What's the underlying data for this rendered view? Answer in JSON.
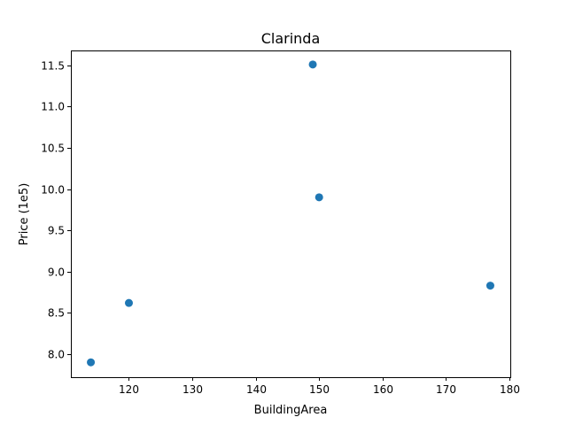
{
  "chart_data": {
    "type": "scatter",
    "title": "Clarinda",
    "xlabel": "BuildingArea",
    "ylabel": "Price (1e5)",
    "xlim": [
      110.85,
      180.15
    ],
    "ylim": [
      7.72,
      11.68
    ],
    "x_ticks": [
      {
        "value": 120,
        "label": "120"
      },
      {
        "value": 130,
        "label": "130"
      },
      {
        "value": 140,
        "label": "140"
      },
      {
        "value": 150,
        "label": "150"
      },
      {
        "value": 160,
        "label": "160"
      },
      {
        "value": 170,
        "label": "170"
      },
      {
        "value": 180,
        "label": "180"
      }
    ],
    "y_ticks": [
      {
        "value": 8.0,
        "label": "8.0"
      },
      {
        "value": 8.5,
        "label": "8.5"
      },
      {
        "value": 9.0,
        "label": "9.0"
      },
      {
        "value": 9.5,
        "label": "9.5"
      },
      {
        "value": 10.0,
        "label": "10.0"
      },
      {
        "value": 10.5,
        "label": "10.5"
      },
      {
        "value": 11.0,
        "label": "11.0"
      },
      {
        "value": 11.5,
        "label": "11.5"
      }
    ],
    "grid": false,
    "legend": "none",
    "marker_color": "#1f77b4",
    "points": [
      {
        "x": 114,
        "y": 7.9
      },
      {
        "x": 120,
        "y": 8.62
      },
      {
        "x": 149,
        "y": 11.51
      },
      {
        "x": 150,
        "y": 9.9
      },
      {
        "x": 177,
        "y": 8.83
      }
    ]
  }
}
